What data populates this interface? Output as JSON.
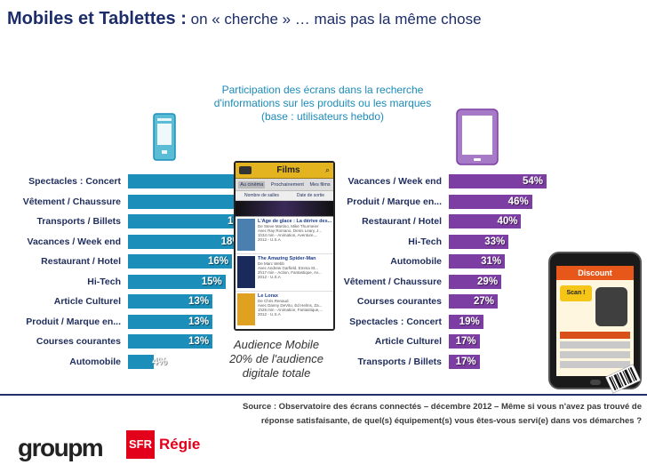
{
  "title": {
    "lead": "Mobiles et Tablettes :",
    "rest": " on « cherche » … mais pas la même chose"
  },
  "subtitle": [
    "Participation des écrans dans la recherche",
    "d'informations sur les produits ou les marques",
    "(base : utilisateurs hebdo)"
  ],
  "mobile_screenshot": {
    "header": "Films",
    "tabs": [
      "Au cinéma",
      "Prochainement",
      "Mes films"
    ],
    "subtabs": [
      "Nombre de salles",
      "Date de sortie"
    ],
    "films": [
      {
        "title": "L'Âge de glace : La dérive des...",
        "lines": [
          "De Steve Martino, Mike Thurmeier",
          "Avec Ray Romano, Denis Leary, J...",
          "1h34 min - Animation, Aventure,...",
          "2012 - U.S.A"
        ]
      },
      {
        "title": "The Amazing Spider-Man",
        "lines": [
          "De Marc Webb",
          "Avec Andrew Garfield, Emma St...",
          "2h17 min - Action, Fantastique, Av...",
          "2012 - U.S.A"
        ]
      },
      {
        "title": "Le Lorax",
        "lines": [
          "De Chris Renaud",
          "Avec Danny DeVito, Ed Helms, Za...",
          "1h26 min - Animation, Fantastique,...",
          "2012 - U.S.A"
        ]
      }
    ]
  },
  "audience": [
    "Audience Mobile",
    "20% de l'audience",
    "digitale totale"
  ],
  "tablet_screenshot": {
    "banner": "Discount",
    "badge": "Scan !"
  },
  "source": [
    "Source : Observatoire des écrans connectés – décembre 2012 – Même si vous n'avez pas trouvé de",
    "réponse satisfaisante, de quel(s) équipement(s) vous êtes-vous servi(e) dans vos démarches ?"
  ],
  "logos": {
    "groupm": "groupm",
    "sfr": "SFR",
    "regie": "Régie"
  },
  "colors": {
    "mobile_bar": "#1b8fba",
    "tablet_bar": "#7d3ea3",
    "title": "#1c2d6a",
    "subtitle": "#1c8bb9"
  },
  "chart_data": [
    {
      "type": "bar",
      "orientation": "horizontal",
      "series_name": "Mobile",
      "categories": [
        "Spectacles : Concert",
        "Vêtement / Chaussure",
        "Transports / Billets",
        "Vacances / Week end",
        "Restaurant / Hotel",
        "Hi-Tech",
        "Article Culturel",
        "Produit / Marque en...",
        "Courses courantes",
        "Automobile"
      ],
      "values": [
        20,
        20,
        19,
        18,
        16,
        15,
        13,
        13,
        13,
        4
      ],
      "labels": [
        "20%",
        "20%",
        "19%",
        "18%",
        "16%",
        "15%",
        "13%",
        "13%",
        "13%",
        "4%"
      ],
      "unit": "%"
    },
    {
      "type": "bar",
      "orientation": "horizontal",
      "series_name": "Tablette",
      "categories": [
        "Vacances / Week end",
        "Produit / Marque en...",
        "Restaurant / Hotel",
        "Hi-Tech",
        "Automobile",
        "Vêtement / Chaussure",
        "Courses courantes",
        "Spectacles : Concert",
        "Article Culturel",
        "Transports / Billets"
      ],
      "values": [
        54,
        46,
        40,
        33,
        31,
        29,
        27,
        19,
        17,
        17
      ],
      "labels": [
        "54%",
        "46%",
        "40%",
        "33%",
        "31%",
        "29%",
        "27%",
        "19%",
        "17%",
        "17%"
      ],
      "unit": "%"
    }
  ]
}
